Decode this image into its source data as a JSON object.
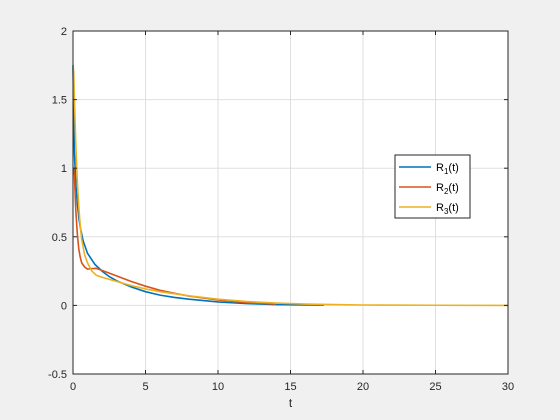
{
  "chart_data": {
    "type": "line",
    "xlabel": "t",
    "ylabel": "",
    "title": "",
    "xlim": [
      0,
      30
    ],
    "ylim": [
      -0.5,
      2
    ],
    "grid": true,
    "legend_location": "right",
    "xticks": [
      0,
      5,
      10,
      15,
      20,
      25,
      30
    ],
    "yticks": [
      -0.5,
      0,
      0.5,
      1,
      1.5,
      2
    ],
    "xtick_labels": [
      "0",
      "5",
      "10",
      "15",
      "20",
      "25",
      "30"
    ],
    "ytick_labels": [
      "-0.5",
      "0",
      "0.5",
      "1",
      "1.5",
      "2"
    ],
    "series": [
      {
        "name": "R1(t)",
        "label_main": "R",
        "label_sub": "1",
        "label_suffix": "(t)",
        "color": "#0072BD",
        "x": [
          0,
          0.1,
          0.2,
          0.3,
          0.4,
          0.5,
          0.7,
          1.0,
          1.5,
          2.0,
          2.5,
          3.0,
          4.0,
          5.0,
          6.0,
          7.0,
          8.0,
          10.0,
          12.0,
          14.0,
          16.0,
          17.3
        ],
        "y": [
          1.75,
          1.1,
          0.88,
          0.74,
          0.64,
          0.57,
          0.47,
          0.38,
          0.3,
          0.25,
          0.21,
          0.18,
          0.135,
          0.1,
          0.075,
          0.058,
          0.045,
          0.025,
          0.013,
          0.006,
          0.003,
          0.002
        ]
      },
      {
        "name": "R2(t)",
        "label_main": "R",
        "label_sub": "2",
        "label_suffix": "(t)",
        "color": "#D95319",
        "x": [
          0,
          0.05,
          0.1,
          0.15,
          0.2,
          0.3,
          0.4,
          0.5,
          0.6,
          0.8,
          1.0,
          1.3,
          1.6,
          2.0,
          2.5,
          3.0,
          4.0,
          5.0,
          6.0,
          7.0,
          8.0,
          10.0,
          12.0,
          14.0
        ],
        "y": [
          1.0,
          1.0,
          0.95,
          0.8,
          0.68,
          0.52,
          0.41,
          0.35,
          0.31,
          0.28,
          0.265,
          0.268,
          0.27,
          0.255,
          0.235,
          0.215,
          0.175,
          0.14,
          0.11,
          0.088,
          0.068,
          0.04,
          0.02,
          0.01
        ]
      },
      {
        "name": "R3(t)",
        "label_main": "R",
        "label_sub": "3",
        "label_suffix": "(t)",
        "color": "#EDB120",
        "x": [
          0,
          0.05,
          0.1,
          0.2,
          0.3,
          0.4,
          0.5,
          0.6,
          0.8,
          1.0,
          1.3,
          1.6,
          2.0,
          2.5,
          3.0,
          4.0,
          5.0,
          6.0,
          8.0,
          10.0,
          12.0,
          14.0,
          16.0,
          18.0,
          20.0,
          25.0,
          30.0
        ],
        "y": [
          1.75,
          1.7,
          1.5,
          1.15,
          0.9,
          0.72,
          0.58,
          0.48,
          0.37,
          0.31,
          0.25,
          0.22,
          0.205,
          0.19,
          0.175,
          0.145,
          0.12,
          0.1,
          0.07,
          0.045,
          0.028,
          0.017,
          0.01,
          0.006,
          0.003,
          0.001,
          0.0
        ]
      }
    ]
  }
}
